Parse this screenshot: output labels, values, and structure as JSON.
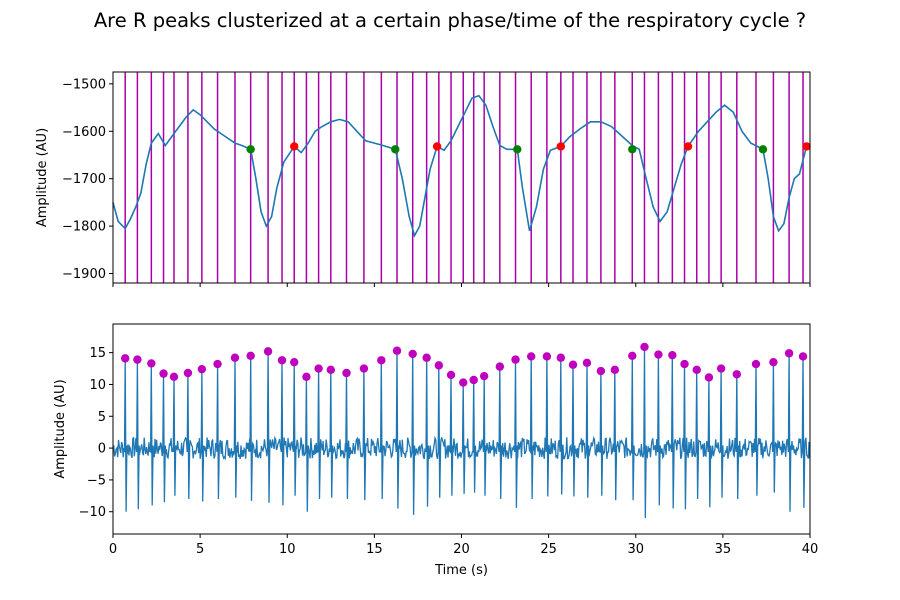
{
  "chart_data": [
    {
      "type": "line",
      "title": "Are R peaks clusterized at a certain phase/time of the respiratory cycle ?",
      "ylabel": "Amplitude (AU)",
      "xlabel": "",
      "xlim": [
        0,
        40
      ],
      "ylim": [
        -1920,
        -1475
      ],
      "yticks": [
        -1900,
        -1800,
        -1700,
        -1600,
        -1500
      ],
      "ytick_labels": [
        "−1900",
        "−1800",
        "−1700",
        "−1600",
        "−1500"
      ],
      "xticks": [
        0,
        5,
        10,
        15,
        20,
        25,
        30,
        35,
        40
      ],
      "grid": false,
      "colors": {
        "signal": "#1f77b4",
        "rpeak_lines": "#aa00aa",
        "inspiration_onset": "#008000",
        "expiration_onset": "#ff0000"
      },
      "series": [
        {
          "x": [
            0,
            0.3,
            0.7,
            1.0,
            1.3,
            1.6,
            1.9,
            2.2,
            2.6,
            3.0,
            3.4,
            3.8,
            4.2,
            4.6,
            5.0,
            5.4,
            5.8,
            6.2,
            6.6,
            7.0,
            7.4,
            7.9,
            8.2,
            8.5,
            8.8,
            9.1,
            9.4,
            9.8,
            10.4,
            10.8,
            11.2,
            11.6,
            12.0,
            12.5,
            13.0,
            13.5,
            14.0,
            14.5,
            15.0,
            15.5,
            16.2,
            16.6,
            17.0,
            17.3,
            17.6,
            17.9,
            18.2,
            18.6,
            19.0,
            19.4,
            19.8,
            20.2,
            20.6,
            21.0,
            21.4,
            21.8,
            22.2,
            22.6,
            23.2,
            23.5,
            23.9,
            24.3,
            24.7,
            25.1,
            25.7,
            26.2,
            26.8,
            27.4,
            28.0,
            28.6,
            29.2,
            29.8,
            30.2,
            30.6,
            31.0,
            31.4,
            31.8,
            32.2,
            32.6,
            33.0,
            33.6,
            34.1,
            34.6,
            35.1,
            35.6,
            36.1,
            36.6,
            37.3,
            37.6,
            37.9,
            38.2,
            38.5,
            38.8,
            39.1,
            39.4,
            39.8,
            40.0
          ],
          "values": [
            -1750,
            -1790,
            -1805,
            -1785,
            -1760,
            -1730,
            -1670,
            -1625,
            -1605,
            -1630,
            -1610,
            -1590,
            -1570,
            -1555,
            -1565,
            -1580,
            -1595,
            -1605,
            -1615,
            -1625,
            -1630,
            -1638,
            -1700,
            -1770,
            -1800,
            -1780,
            -1720,
            -1665,
            -1632,
            -1645,
            -1625,
            -1600,
            -1590,
            -1580,
            -1575,
            -1580,
            -1600,
            -1620,
            -1625,
            -1630,
            -1638,
            -1700,
            -1780,
            -1820,
            -1800,
            -1740,
            -1680,
            -1632,
            -1640,
            -1620,
            -1590,
            -1560,
            -1530,
            -1525,
            -1545,
            -1590,
            -1630,
            -1638,
            -1638,
            -1720,
            -1810,
            -1760,
            -1680,
            -1640,
            -1632,
            -1612,
            -1595,
            -1580,
            -1580,
            -1590,
            -1610,
            -1630,
            -1638,
            -1700,
            -1760,
            -1790,
            -1770,
            -1720,
            -1670,
            -1632,
            -1600,
            -1580,
            -1560,
            -1545,
            -1560,
            -1600,
            -1625,
            -1638,
            -1700,
            -1780,
            -1810,
            -1795,
            -1740,
            -1700,
            -1690,
            -1632,
            -1632
          ]
        }
      ],
      "rpeak_times": [
        0.7,
        1.4,
        2.2,
        2.9,
        3.5,
        4.3,
        5.1,
        6.0,
        7.0,
        7.9,
        8.9,
        9.7,
        10.4,
        11.1,
        11.8,
        12.5,
        13.4,
        14.4,
        15.4,
        16.3,
        17.2,
        18.0,
        18.7,
        19.4,
        20.1,
        20.7,
        21.3,
        22.2,
        23.1,
        24.0,
        24.9,
        25.7,
        26.4,
        27.2,
        28.0,
        28.8,
        29.8,
        30.5,
        31.3,
        32.1,
        32.8,
        33.5,
        34.2,
        34.9,
        35.8,
        36.9,
        37.9,
        38.8,
        39.6
      ],
      "markers": [
        {
          "kind": "inspiration_onset",
          "points": [
            [
              7.9,
              -1638
            ],
            [
              16.2,
              -1638
            ],
            [
              23.2,
              -1638
            ],
            [
              29.8,
              -1638
            ],
            [
              37.3,
              -1638
            ]
          ]
        },
        {
          "kind": "expiration_onset",
          "points": [
            [
              10.4,
              -1632
            ],
            [
              18.6,
              -1632
            ],
            [
              25.7,
              -1632
            ],
            [
              33.0,
              -1632
            ],
            [
              39.8,
              -1632
            ]
          ]
        }
      ]
    },
    {
      "type": "line",
      "title": "",
      "ylabel": "Amplitude (AU)",
      "xlabel": "Time (s)",
      "xlim": [
        0,
        40
      ],
      "ylim": [
        -13.5,
        19.5
      ],
      "yticks": [
        -10,
        -5,
        0,
        5,
        10,
        15
      ],
      "ytick_labels": [
        "−10",
        "−5",
        "0",
        "5",
        "10",
        "15"
      ],
      "xticks": [
        0,
        5,
        10,
        15,
        20,
        25,
        30,
        35,
        40
      ],
      "xtick_labels": [
        "0",
        "5",
        "10",
        "15",
        "20",
        "25",
        "30",
        "35",
        "40"
      ],
      "grid": false,
      "colors": {
        "signal": "#1f77b4",
        "rpeak_markers": "#bf00bf"
      },
      "series": [
        {
          "name": "",
          "rpeak_x": [
            0.7,
            1.4,
            2.2,
            2.9,
            3.5,
            4.3,
            5.1,
            6.0,
            7.0,
            7.9,
            8.9,
            9.7,
            10.4,
            11.1,
            11.8,
            12.5,
            13.4,
            14.4,
            15.4,
            16.3,
            17.2,
            18.0,
            18.7,
            19.4,
            20.1,
            20.7,
            21.3,
            22.2,
            23.1,
            24.0,
            24.9,
            25.7,
            26.4,
            27.2,
            28.0,
            28.8,
            29.8,
            30.5,
            31.3,
            32.1,
            32.8,
            33.5,
            34.2,
            34.9,
            35.8,
            36.9,
            37.9,
            38.8,
            39.6
          ],
          "rpeak_y": [
            14.1,
            13.9,
            13.3,
            11.7,
            11.2,
            11.8,
            12.4,
            13.2,
            14.2,
            14.5,
            15.2,
            13.8,
            13.5,
            11.2,
            12.5,
            12.3,
            11.8,
            12.5,
            13.8,
            15.3,
            14.8,
            14.2,
            13.0,
            11.5,
            10.3,
            10.7,
            11.3,
            12.8,
            13.9,
            14.4,
            14.4,
            14.2,
            13.1,
            13.4,
            12.1,
            12.3,
            14.5,
            15.9,
            14.7,
            14.6,
            13.2,
            12.3,
            11.1,
            12.5,
            11.6,
            13.2,
            13.5,
            14.9,
            14.4
          ],
          "s_wave_y": [
            -10.0,
            -9.6,
            -9.0,
            -8.5,
            -7.5,
            -8.0,
            -8.4,
            -8.0,
            -7.8,
            -8.3,
            -8.6,
            -9.0,
            -7.5,
            -10.0,
            -8.0,
            -7.8,
            -8.0,
            -8.2,
            -8.0,
            -9.5,
            -10.5,
            -9.2,
            -7.8,
            -7.5,
            -7.2,
            -7.0,
            -7.5,
            -8.0,
            -9.4,
            -8.0,
            -7.6,
            -7.3,
            -7.6,
            -7.8,
            -7.5,
            -8.2,
            -8.2,
            -11.0,
            -9.0,
            -9.5,
            -9.6,
            -8.0,
            -9.3,
            -7.8,
            -8.0,
            -7.5,
            -7.0,
            -10.0,
            -9.4
          ]
        }
      ]
    }
  ]
}
